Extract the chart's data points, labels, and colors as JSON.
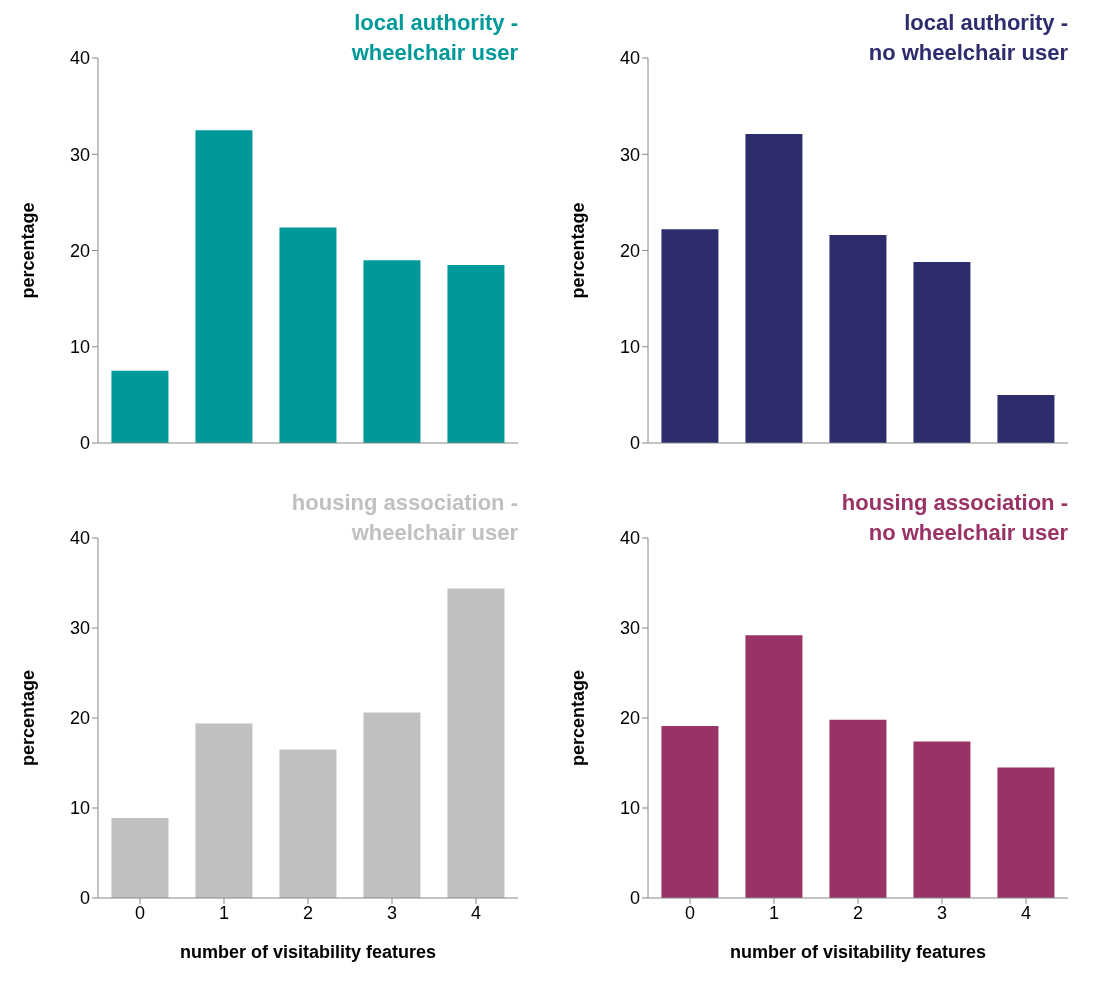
{
  "chart_data": [
    {
      "type": "bar",
      "title": "local authority -\nwheelchair user",
      "categories": [
        null,
        null,
        null,
        null,
        null
      ],
      "values": [
        7.5,
        32.5,
        22.4,
        19.0,
        18.5
      ],
      "color": "#009999",
      "ylabel": "percentage",
      "ylim": [
        0,
        40
      ],
      "yticks": [
        0,
        10,
        20,
        30,
        40
      ],
      "tick_labels": "y"
    },
    {
      "type": "bar",
      "title": "local authority -\nno wheelchair user",
      "categories": [
        null,
        null,
        null,
        null,
        null
      ],
      "values": [
        22.2,
        32.1,
        21.6,
        18.8,
        5.0
      ],
      "color": "#2d2d6e",
      "ylabel": "percentage",
      "ylim": [
        0,
        40
      ],
      "yticks": [
        0,
        10,
        20,
        30,
        40
      ],
      "tick_labels": "y"
    },
    {
      "type": "bar",
      "title": "housing association -\nwheelchair user",
      "categories": [
        "0",
        "1",
        "2",
        "3",
        "4"
      ],
      "values": [
        8.9,
        19.4,
        16.5,
        20.6,
        34.4
      ],
      "color": "#c0c0c0",
      "xlabel": "number of visitability features",
      "ylabel": "percentage",
      "ylim": [
        0,
        40
      ],
      "yticks": [
        0,
        10,
        20,
        30,
        40
      ]
    },
    {
      "type": "bar",
      "title": "housing association -\nno wheelchair user",
      "categories": [
        "0",
        "1",
        "2",
        "3",
        "4"
      ],
      "values": [
        19.1,
        29.2,
        19.8,
        17.4,
        14.5
      ],
      "color": "#993366",
      "xlabel": "number of visitability features",
      "ylabel": "percentage",
      "ylim": [
        0,
        40
      ],
      "yticks": [
        0,
        10,
        20,
        30,
        40
      ]
    }
  ]
}
